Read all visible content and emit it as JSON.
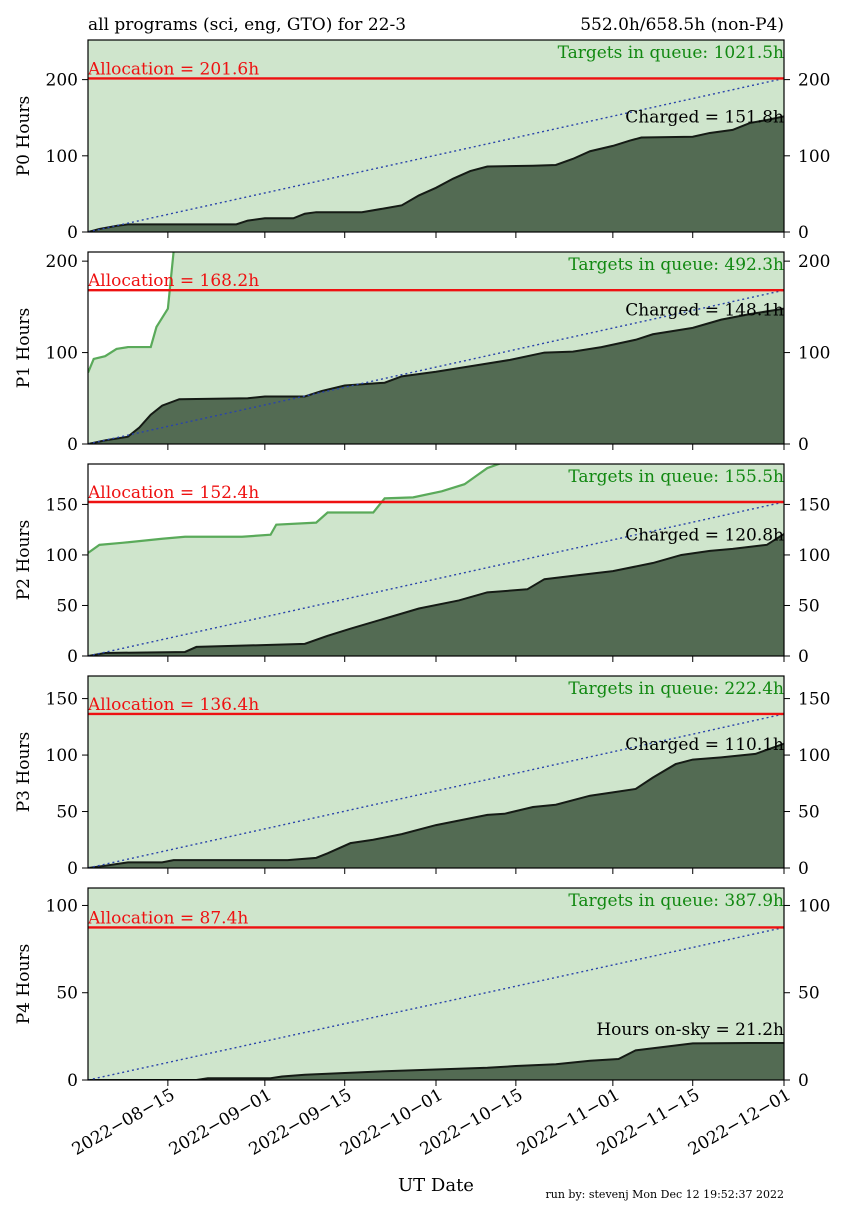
{
  "header": {
    "left": "all programs (sci, eng, GTO) for 22-3",
    "right": "552.0h/658.5h (non-P4)"
  },
  "xlabel": "UT Date",
  "run_by": "run by: stevenj Mon Dec 12 19:52:37 2022",
  "colors": {
    "queue_fill": "#cfe5cc",
    "queue_line": "#5aaa5a",
    "charged_fill": "#536b53",
    "charged_line": "#151b15",
    "allocation": "#ee1111",
    "ideal": "#2a44aa",
    "queue_text": "#118811"
  },
  "x_ticks": [
    "2022-08-15",
    "2022-09-01",
    "2022-09-15",
    "2022-10-01",
    "2022-10-15",
    "2022-11-01",
    "2022-11-15",
    "2022-12-01"
  ],
  "chart_data": [
    {
      "type": "area",
      "ylabel": "P0 Hours",
      "ylim": [
        0,
        252
      ],
      "yticks": [
        0,
        100,
        200
      ],
      "xlim": [
        "2022-08-01",
        "2022-12-01"
      ],
      "allocation_label": "Allocation = 201.6h",
      "allocation": 201.6,
      "queue_label": "Targets in queue: 1021.5h",
      "queue_total": 1021.5,
      "charged_label": "Charged = 151.8h",
      "charged_total": 151.8,
      "queue_curve": [],
      "charged_curve": [
        [
          "2022-08-01",
          0
        ],
        [
          "2022-08-03",
          4
        ],
        [
          "2022-08-06",
          8
        ],
        [
          "2022-08-08",
          10
        ],
        [
          "2022-08-20",
          10
        ],
        [
          "2022-08-27",
          10
        ],
        [
          "2022-08-29",
          15
        ],
        [
          "2022-09-01",
          18
        ],
        [
          "2022-09-06",
          18
        ],
        [
          "2022-09-08",
          24
        ],
        [
          "2022-09-10",
          26
        ],
        [
          "2022-09-18",
          26
        ],
        [
          "2022-09-22",
          31
        ],
        [
          "2022-09-25",
          35
        ],
        [
          "2022-09-28",
          48
        ],
        [
          "2022-10-01",
          58
        ],
        [
          "2022-10-04",
          70
        ],
        [
          "2022-10-07",
          80
        ],
        [
          "2022-10-10",
          86
        ],
        [
          "2022-10-18",
          87
        ],
        [
          "2022-10-22",
          88
        ],
        [
          "2022-10-25",
          96
        ],
        [
          "2022-10-28",
          106
        ],
        [
          "2022-11-01",
          113
        ],
        [
          "2022-11-04",
          120
        ],
        [
          "2022-11-06",
          124
        ],
        [
          "2022-11-15",
          125
        ],
        [
          "2022-11-18",
          130
        ],
        [
          "2022-11-22",
          134
        ],
        [
          "2022-11-25",
          143
        ],
        [
          "2022-11-28",
          147
        ],
        [
          "2022-12-01",
          151.8
        ]
      ]
    },
    {
      "type": "area",
      "ylabel": "P1 Hours",
      "ylim": [
        0,
        210
      ],
      "yticks": [
        0,
        100,
        200
      ],
      "xlim": [
        "2022-08-01",
        "2022-12-01"
      ],
      "allocation_label": "Allocation = 168.2h",
      "allocation": 168.2,
      "queue_label": "Targets in queue: 492.3h",
      "queue_total": 492.3,
      "charged_label": "Charged = 148.1h",
      "charged_total": 148.1,
      "queue_curve": [
        [
          "2022-08-01",
          78
        ],
        [
          "2022-08-02",
          93
        ],
        [
          "2022-08-04",
          96
        ],
        [
          "2022-08-06",
          104
        ],
        [
          "2022-08-08",
          106
        ],
        [
          "2022-08-12",
          106
        ],
        [
          "2022-08-13",
          128
        ],
        [
          "2022-08-15",
          148
        ],
        [
          "2022-08-16",
          210
        ]
      ],
      "charged_curve": [
        [
          "2022-08-01",
          0
        ],
        [
          "2022-08-04",
          4
        ],
        [
          "2022-08-08",
          8
        ],
        [
          "2022-08-10",
          18
        ],
        [
          "2022-08-12",
          32
        ],
        [
          "2022-08-14",
          42
        ],
        [
          "2022-08-17",
          49
        ],
        [
          "2022-08-29",
          50
        ],
        [
          "2022-09-01",
          52
        ],
        [
          "2022-09-08",
          52
        ],
        [
          "2022-09-11",
          58
        ],
        [
          "2022-09-15",
          64
        ],
        [
          "2022-09-22",
          67
        ],
        [
          "2022-09-25",
          74
        ],
        [
          "2022-10-01",
          79
        ],
        [
          "2022-10-08",
          86
        ],
        [
          "2022-10-14",
          92
        ],
        [
          "2022-10-20",
          100
        ],
        [
          "2022-10-25",
          101
        ],
        [
          "2022-10-30",
          106
        ],
        [
          "2022-11-05",
          114
        ],
        [
          "2022-11-08",
          120
        ],
        [
          "2022-11-15",
          127
        ],
        [
          "2022-11-20",
          136
        ],
        [
          "2022-11-25",
          142
        ],
        [
          "2022-12-01",
          148.1
        ]
      ]
    },
    {
      "type": "area",
      "ylabel": "P2 Hours",
      "ylim": [
        0,
        190
      ],
      "yticks": [
        0,
        50,
        100,
        150
      ],
      "xlim": [
        "2022-08-01",
        "2022-12-01"
      ],
      "allocation_label": "Allocation = 152.4h",
      "allocation": 152.4,
      "queue_label": "Targets in queue: 155.5h",
      "queue_total": 155.5,
      "charged_label": "Charged = 120.8h",
      "charged_total": 120.8,
      "queue_curve": [
        [
          "2022-08-01",
          102
        ],
        [
          "2022-08-03",
          110
        ],
        [
          "2022-08-07",
          112
        ],
        [
          "2022-08-14",
          116
        ],
        [
          "2022-08-18",
          118
        ],
        [
          "2022-08-28",
          118
        ],
        [
          "2022-09-02",
          120
        ],
        [
          "2022-09-03",
          130
        ],
        [
          "2022-09-10",
          132
        ],
        [
          "2022-09-12",
          142
        ],
        [
          "2022-09-20",
          142
        ],
        [
          "2022-09-22",
          156
        ],
        [
          "2022-09-27",
          157
        ],
        [
          "2022-10-02",
          163
        ],
        [
          "2022-10-06",
          170
        ],
        [
          "2022-10-08",
          178
        ],
        [
          "2022-10-10",
          186
        ],
        [
          "2022-10-12",
          190
        ]
      ],
      "charged_curve": [
        [
          "2022-08-01",
          0
        ],
        [
          "2022-08-04",
          3
        ],
        [
          "2022-08-18",
          4
        ],
        [
          "2022-08-20",
          9
        ],
        [
          "2022-09-02",
          11
        ],
        [
          "2022-09-08",
          12
        ],
        [
          "2022-09-12",
          20
        ],
        [
          "2022-09-16",
          27
        ],
        [
          "2022-09-22",
          37
        ],
        [
          "2022-09-28",
          47
        ],
        [
          "2022-10-05",
          55
        ],
        [
          "2022-10-10",
          63
        ],
        [
          "2022-10-17",
          66
        ],
        [
          "2022-10-20",
          76
        ],
        [
          "2022-10-26",
          80
        ],
        [
          "2022-11-01",
          84
        ],
        [
          "2022-11-08",
          92
        ],
        [
          "2022-11-13",
          100
        ],
        [
          "2022-11-18",
          104
        ],
        [
          "2022-11-22",
          106
        ],
        [
          "2022-11-28",
          110
        ],
        [
          "2022-12-01",
          120.8
        ]
      ]
    },
    {
      "type": "area",
      "ylabel": "P3 Hours",
      "ylim": [
        0,
        170
      ],
      "yticks": [
        0,
        50,
        100,
        150
      ],
      "xlim": [
        "2022-08-01",
        "2022-12-01"
      ],
      "allocation_label": "Allocation = 136.4h",
      "allocation": 136.4,
      "queue_label": "Targets in queue: 222.4h",
      "queue_total": 222.4,
      "charged_label": "Charged = 110.1h",
      "charged_total": 110.1,
      "queue_curve": [],
      "charged_curve": [
        [
          "2022-08-01",
          0
        ],
        [
          "2022-08-04",
          2
        ],
        [
          "2022-08-08",
          5
        ],
        [
          "2022-08-14",
          5
        ],
        [
          "2022-08-16",
          7
        ],
        [
          "2022-09-05",
          7
        ],
        [
          "2022-09-10",
          9
        ],
        [
          "2022-09-12",
          13
        ],
        [
          "2022-09-16",
          22
        ],
        [
          "2022-09-20",
          25
        ],
        [
          "2022-09-25",
          30
        ],
        [
          "2022-10-01",
          38
        ],
        [
          "2022-10-10",
          47
        ],
        [
          "2022-10-13",
          48
        ],
        [
          "2022-10-18",
          54
        ],
        [
          "2022-10-22",
          56
        ],
        [
          "2022-10-28",
          64
        ],
        [
          "2022-11-01",
          67
        ],
        [
          "2022-11-05",
          70
        ],
        [
          "2022-11-08",
          80
        ],
        [
          "2022-11-12",
          92
        ],
        [
          "2022-11-15",
          96
        ],
        [
          "2022-11-20",
          98
        ],
        [
          "2022-11-26",
          101
        ],
        [
          "2022-12-01",
          110.1
        ]
      ]
    },
    {
      "type": "area",
      "ylabel": "P4 Hours",
      "ylim": [
        0,
        110
      ],
      "yticks": [
        0,
        50,
        100
      ],
      "xlim": [
        "2022-08-01",
        "2022-12-01"
      ],
      "allocation_label": "Allocation = 87.4h",
      "allocation": 87.4,
      "queue_label": "Targets in queue: 387.9h",
      "queue_total": 387.9,
      "charged_label": "Hours on-sky = 21.2h",
      "charged_total": 21.2,
      "queue_curve": [],
      "charged_curve": [
        [
          "2022-08-01",
          0
        ],
        [
          "2022-08-20",
          0
        ],
        [
          "2022-08-22",
          1
        ],
        [
          "2022-09-02",
          1
        ],
        [
          "2022-09-04",
          2
        ],
        [
          "2022-09-08",
          3
        ],
        [
          "2022-09-15",
          4
        ],
        [
          "2022-09-22",
          5
        ],
        [
          "2022-10-01",
          6
        ],
        [
          "2022-10-10",
          7
        ],
        [
          "2022-10-15",
          8
        ],
        [
          "2022-10-22",
          9
        ],
        [
          "2022-10-28",
          11
        ],
        [
          "2022-11-02",
          12
        ],
        [
          "2022-11-05",
          17
        ],
        [
          "2022-11-10",
          19
        ],
        [
          "2022-11-15",
          21
        ],
        [
          "2022-11-25",
          21.2
        ],
        [
          "2022-12-01",
          21.2
        ]
      ]
    }
  ]
}
